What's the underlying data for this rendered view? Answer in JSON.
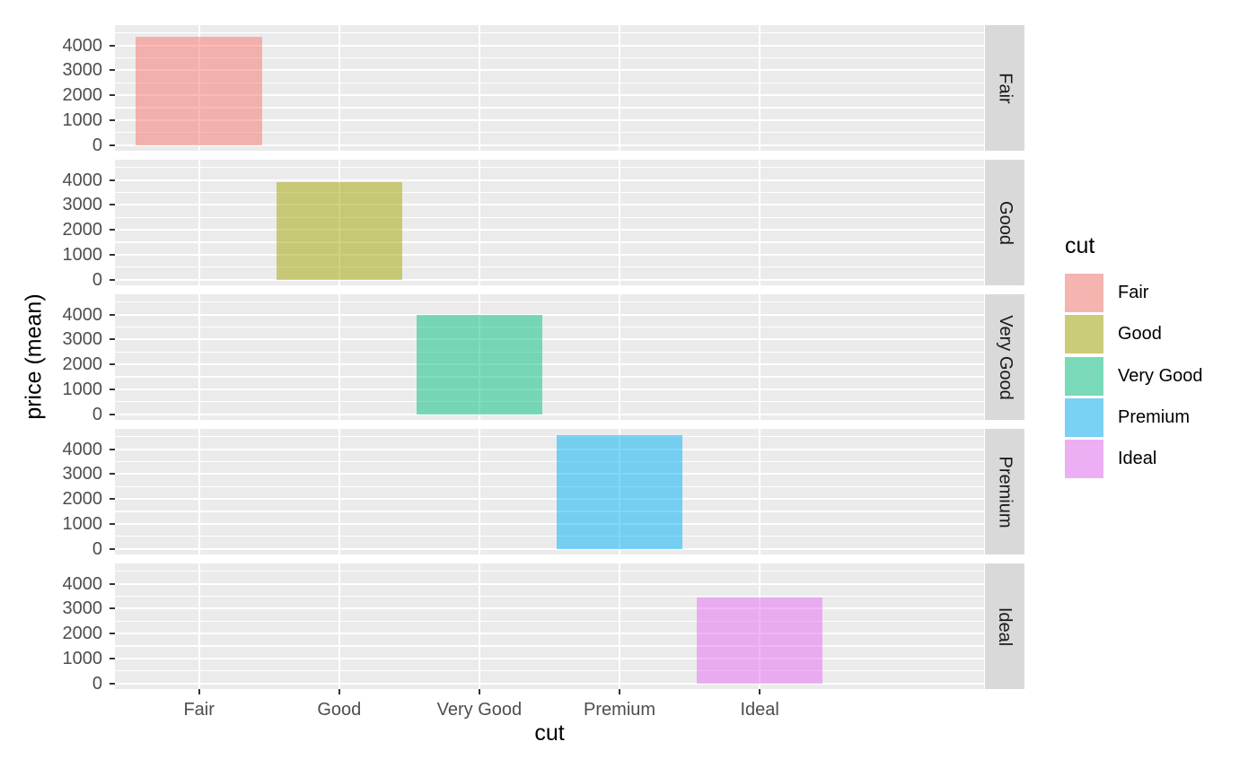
{
  "chart_data": {
    "type": "bar",
    "title": "",
    "xlabel": "cut",
    "ylabel": "price (mean)",
    "categories": [
      "Fair",
      "Good",
      "Very Good",
      "Premium",
      "Ideal"
    ],
    "values": [
      4360,
      3930,
      3980,
      4580,
      3460
    ],
    "facet_variable": "cut",
    "facet_labels": [
      "Fair",
      "Good",
      "Very Good",
      "Premium",
      "Ideal"
    ],
    "facet_strip_side": "right",
    "y_ticks": [
      0,
      1000,
      2000,
      3000,
      4000
    ],
    "y_minor_step": 500,
    "ylim": [
      -229,
      4813
    ],
    "x_expansion_units": 0.6,
    "bar_width_fraction": 0.9,
    "fill_alpha": 0.5,
    "colors": [
      "#F8766D",
      "#A3A500",
      "#00BF7D",
      "#00B0F6",
      "#E76BF3"
    ],
    "legend": {
      "title": "cut",
      "position": "right",
      "entries": [
        {
          "label": "Fair",
          "color": "#F8766D"
        },
        {
          "label": "Good",
          "color": "#A3A500"
        },
        {
          "label": "Very Good",
          "color": "#00BF7D"
        },
        {
          "label": "Premium",
          "color": "#00B0F6"
        },
        {
          "label": "Ideal",
          "color": "#E76BF3"
        }
      ]
    },
    "theme": {
      "panel_bg": "#EBEBEB",
      "grid_color": "#FFFFFF",
      "strip_bg": "#D9D9D9",
      "strip_text_color": "#1A1A1A",
      "tick_text_color": "#4D4D4D",
      "tick_mark_color": "#333333",
      "title_text_color": "#000000",
      "legend_key_bg": "#F2F2F2",
      "grid_on": true
    }
  }
}
